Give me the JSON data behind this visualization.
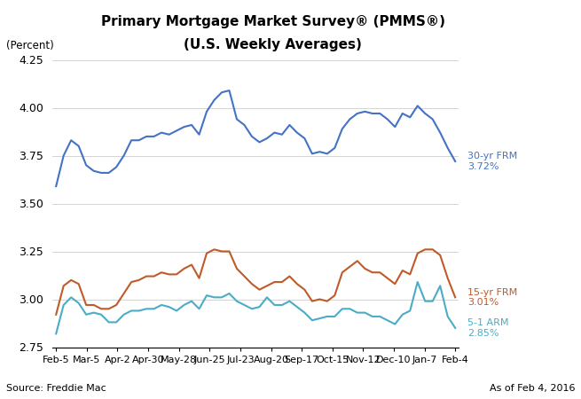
{
  "title_line1": "Primary Mortgage Market Survey® (PMMS®)",
  "title_line2": "(U.S. Weekly Averages)",
  "ylabel": "(Percent)",
  "source_text": "Source: Freddie Mac",
  "date_text": "As of Feb 4, 2016",
  "x_labels": [
    "Feb-5",
    "Mar-5",
    "Apr-2",
    "Apr-30",
    "May-28",
    "Jun-25",
    "Jul-23",
    "Aug-20",
    "Sep-17",
    "Oct-15",
    "Nov-12",
    "Dec-10",
    "Jan-7",
    "Feb-4"
  ],
  "ylim": [
    2.75,
    4.25
  ],
  "yticks": [
    2.75,
    3.0,
    3.25,
    3.5,
    3.75,
    4.0,
    4.25
  ],
  "frm30_color": "#4472C4",
  "frm15_color": "#C05A28",
  "arm51_color": "#4BACC6",
  "frm30_label": "30-yr FRM\n3.72%",
  "frm15_label": "15-yr FRM\n3.01%",
  "arm51_label": "5-1 ARM\n2.85%",
  "frm30": [
    3.59,
    3.75,
    3.83,
    3.8,
    3.7,
    3.67,
    3.66,
    3.66,
    3.69,
    3.75,
    3.83,
    3.83,
    3.85,
    3.85,
    3.87,
    3.86,
    3.88,
    3.9,
    3.91,
    3.86,
    3.98,
    4.04,
    4.08,
    4.09,
    3.94,
    3.91,
    3.85,
    3.82,
    3.84,
    3.87,
    3.86,
    3.91,
    3.87,
    3.84,
    3.76,
    3.77,
    3.76,
    3.79,
    3.89,
    3.94,
    3.97,
    3.98,
    3.97,
    3.97,
    3.94,
    3.9,
    3.97,
    3.95,
    4.01,
    3.97,
    3.94,
    3.87,
    3.79,
    3.72
  ],
  "frm15": [
    2.92,
    3.07,
    3.1,
    3.08,
    2.97,
    2.97,
    2.95,
    2.95,
    2.97,
    3.03,
    3.09,
    3.1,
    3.12,
    3.12,
    3.14,
    3.13,
    3.13,
    3.16,
    3.18,
    3.11,
    3.24,
    3.26,
    3.25,
    3.25,
    3.16,
    3.12,
    3.08,
    3.05,
    3.07,
    3.09,
    3.09,
    3.12,
    3.08,
    3.05,
    2.99,
    3.0,
    2.99,
    3.02,
    3.14,
    3.17,
    3.2,
    3.16,
    3.14,
    3.14,
    3.11,
    3.08,
    3.15,
    3.13,
    3.24,
    3.26,
    3.26,
    3.23,
    3.11,
    3.01
  ],
  "arm51": [
    2.82,
    2.97,
    3.01,
    2.98,
    2.92,
    2.93,
    2.92,
    2.88,
    2.88,
    2.92,
    2.94,
    2.94,
    2.95,
    2.95,
    2.97,
    2.96,
    2.94,
    2.97,
    2.99,
    2.95,
    3.02,
    3.01,
    3.01,
    3.03,
    2.99,
    2.97,
    2.95,
    2.96,
    3.01,
    2.97,
    2.97,
    2.99,
    2.96,
    2.93,
    2.89,
    2.9,
    2.91,
    2.91,
    2.95,
    2.95,
    2.93,
    2.93,
    2.91,
    2.91,
    2.89,
    2.87,
    2.92,
    2.94,
    3.09,
    2.99,
    2.99,
    3.07,
    2.91,
    2.85
  ]
}
